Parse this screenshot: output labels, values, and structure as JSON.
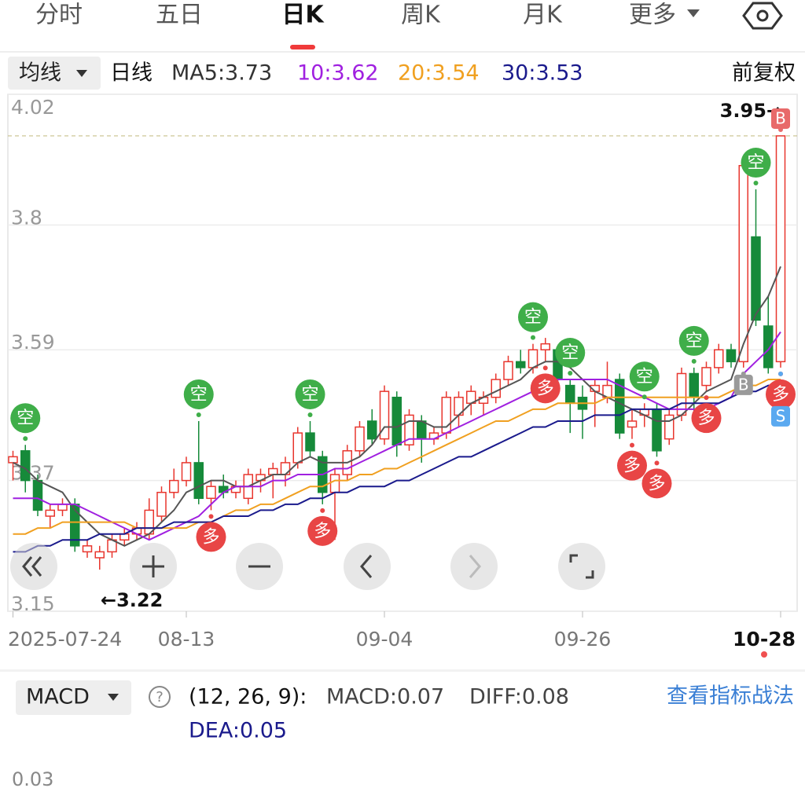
{
  "tabs": [
    "分时",
    "五日",
    "日K",
    "周K",
    "月K",
    "更多"
  ],
  "selected_tab": 2,
  "legend": {
    "menu": "均线",
    "period": "日线",
    "items": [
      {
        "label": "MA5:3.73",
        "color": "#333333"
      },
      {
        "label": "10:3.62",
        "color": "#a020e0"
      },
      {
        "label": "20:3.54",
        "color": "#f0a020"
      },
      {
        "label": "30:3.53",
        "color": "#1a1a8c"
      }
    ],
    "adjust": "前复权"
  },
  "chart_data": {
    "type": "candlestick",
    "categories": [
      "2025-07-24",
      null,
      null,
      null,
      null,
      null,
      null,
      null,
      null,
      null,
      null,
      null,
      null,
      null,
      "08-13",
      null,
      null,
      null,
      null,
      null,
      null,
      null,
      null,
      null,
      null,
      null,
      null,
      null,
      null,
      null,
      "09-04",
      null,
      null,
      null,
      null,
      null,
      null,
      null,
      null,
      null,
      null,
      null,
      null,
      null,
      null,
      null,
      "09-26",
      null,
      null,
      null,
      null,
      null,
      null,
      null,
      null,
      null,
      null,
      null,
      null,
      null,
      null,
      null,
      "10-28"
    ],
    "open": [
      3.4,
      3.42,
      3.37,
      3.31,
      3.32,
      3.33,
      3.25,
      3.24,
      3.25,
      3.27,
      3.28,
      3.28,
      3.31,
      3.35,
      3.37,
      3.4,
      3.34,
      3.36,
      3.35,
      3.34,
      3.37,
      3.38,
      3.38,
      3.4,
      3.45,
      3.41,
      3.35,
      3.38,
      3.42,
      3.47,
      3.44,
      3.51,
      3.43,
      3.47,
      3.44,
      3.45,
      3.48,
      3.5,
      3.5,
      3.51,
      3.54,
      3.57,
      3.56,
      3.59,
      3.59,
      3.53,
      3.51,
      3.52,
      3.51,
      3.54,
      3.46,
      3.48,
      3.49,
      3.44,
      3.48,
      3.55,
      3.53,
      3.56,
      3.59,
      3.57,
      3.78,
      3.63,
      3.57
    ],
    "high": [
      3.42,
      3.43,
      3.38,
      3.33,
      3.34,
      3.34,
      3.27,
      3.26,
      3.28,
      3.29,
      3.3,
      3.34,
      3.36,
      3.39,
      3.41,
      3.47,
      3.37,
      3.38,
      3.37,
      3.39,
      3.39,
      3.4,
      3.41,
      3.46,
      3.47,
      3.42,
      3.39,
      3.43,
      3.47,
      3.49,
      3.53,
      3.52,
      3.49,
      3.48,
      3.46,
      3.52,
      3.52,
      3.53,
      3.52,
      3.55,
      3.58,
      3.59,
      3.6,
      3.61,
      3.59,
      3.54,
      3.53,
      3.54,
      3.57,
      3.55,
      3.49,
      3.5,
      3.5,
      3.49,
      3.56,
      3.56,
      3.57,
      3.6,
      3.6,
      3.9,
      3.86,
      3.68,
      3.95
    ],
    "low": [
      3.37,
      3.35,
      3.31,
      3.29,
      3.31,
      3.25,
      3.24,
      3.22,
      3.24,
      3.26,
      3.27,
      3.27,
      3.3,
      3.34,
      3.36,
      3.33,
      3.32,
      3.34,
      3.34,
      3.33,
      3.35,
      3.34,
      3.36,
      3.39,
      3.41,
      3.33,
      3.27,
      3.37,
      3.41,
      3.43,
      3.43,
      3.41,
      3.42,
      3.4,
      3.43,
      3.44,
      3.46,
      3.48,
      3.48,
      3.5,
      3.53,
      3.55,
      3.55,
      3.57,
      3.52,
      3.45,
      3.44,
      3.46,
      3.5,
      3.44,
      3.44,
      3.46,
      3.41,
      3.43,
      3.47,
      3.48,
      3.52,
      3.55,
      3.56,
      3.56,
      3.63,
      3.55,
      3.56
    ],
    "close": [
      3.41,
      3.37,
      3.32,
      3.32,
      3.33,
      3.26,
      3.26,
      3.25,
      3.27,
      3.28,
      3.29,
      3.32,
      3.35,
      3.37,
      3.4,
      3.34,
      3.36,
      3.35,
      3.36,
      3.38,
      3.38,
      3.39,
      3.4,
      3.45,
      3.42,
      3.35,
      3.38,
      3.42,
      3.46,
      3.44,
      3.52,
      3.43,
      3.48,
      3.44,
      3.45,
      3.51,
      3.51,
      3.52,
      3.51,
      3.54,
      3.57,
      3.56,
      3.59,
      3.6,
      3.54,
      3.5,
      3.49,
      3.53,
      3.53,
      3.45,
      3.47,
      3.49,
      3.42,
      3.48,
      3.55,
      3.51,
      3.56,
      3.59,
      3.57,
      3.9,
      3.64,
      3.56,
      3.95
    ],
    "up_color": "#e8362e",
    "down_color": "#168a3a",
    "series": [
      {
        "color": "#555555",
        "values": [
          3.4,
          3.39,
          3.37,
          3.36,
          3.35,
          3.32,
          3.3,
          3.28,
          3.27,
          3.26,
          3.27,
          3.28,
          3.3,
          3.32,
          3.35,
          3.36,
          3.37,
          3.37,
          3.36,
          3.36,
          3.37,
          3.38,
          3.38,
          3.4,
          3.41,
          3.4,
          3.4,
          3.4,
          3.41,
          3.43,
          3.46,
          3.46,
          3.47,
          3.47,
          3.46,
          3.46,
          3.48,
          3.5,
          3.51,
          3.52,
          3.53,
          3.54,
          3.56,
          3.57,
          3.57,
          3.56,
          3.54,
          3.52,
          3.51,
          3.5,
          3.49,
          3.48,
          3.47,
          3.47,
          3.48,
          3.5,
          3.52,
          3.53,
          3.54,
          3.6,
          3.65,
          3.68,
          3.73
        ]
      },
      {
        "color": "#a020e0",
        "values": [
          3.34,
          3.34,
          3.34,
          3.33,
          3.33,
          3.33,
          3.32,
          3.31,
          3.3,
          3.29,
          3.28,
          3.27,
          3.28,
          3.29,
          3.3,
          3.31,
          3.33,
          3.35,
          3.36,
          3.36,
          3.36,
          3.37,
          3.37,
          3.38,
          3.38,
          3.38,
          3.39,
          3.39,
          3.4,
          3.41,
          3.42,
          3.43,
          3.44,
          3.44,
          3.44,
          3.45,
          3.46,
          3.47,
          3.48,
          3.49,
          3.5,
          3.51,
          3.52,
          3.53,
          3.54,
          3.54,
          3.54,
          3.54,
          3.54,
          3.53,
          3.52,
          3.51,
          3.5,
          3.49,
          3.49,
          3.49,
          3.49,
          3.5,
          3.51,
          3.55,
          3.57,
          3.59,
          3.62
        ]
      },
      {
        "color": "#f0a020",
        "values": [
          3.28,
          3.28,
          3.29,
          3.29,
          3.3,
          3.3,
          3.3,
          3.3,
          3.3,
          3.3,
          3.29,
          3.29,
          3.29,
          3.29,
          3.29,
          3.3,
          3.3,
          3.31,
          3.32,
          3.32,
          3.33,
          3.33,
          3.34,
          3.35,
          3.36,
          3.36,
          3.37,
          3.37,
          3.38,
          3.38,
          3.39,
          3.39,
          3.4,
          3.41,
          3.42,
          3.43,
          3.44,
          3.45,
          3.46,
          3.47,
          3.47,
          3.48,
          3.49,
          3.49,
          3.5,
          3.5,
          3.5,
          3.5,
          3.51,
          3.51,
          3.51,
          3.51,
          3.51,
          3.51,
          3.51,
          3.51,
          3.51,
          3.51,
          3.52,
          3.53,
          3.53,
          3.54,
          3.54
        ]
      },
      {
        "color": "#1a1a8c",
        "values": [
          3.25,
          3.25,
          3.26,
          3.26,
          3.27,
          3.27,
          3.27,
          3.28,
          3.28,
          3.28,
          3.29,
          3.29,
          3.29,
          3.3,
          3.3,
          3.3,
          3.3,
          3.31,
          3.31,
          3.31,
          3.32,
          3.32,
          3.33,
          3.33,
          3.34,
          3.34,
          3.35,
          3.35,
          3.36,
          3.36,
          3.36,
          3.37,
          3.37,
          3.38,
          3.39,
          3.4,
          3.41,
          3.41,
          3.42,
          3.43,
          3.44,
          3.45,
          3.46,
          3.46,
          3.47,
          3.47,
          3.47,
          3.48,
          3.48,
          3.48,
          3.49,
          3.49,
          3.49,
          3.49,
          3.5,
          3.5,
          3.5,
          3.5,
          3.51,
          3.52,
          3.52,
          3.53,
          3.53
        ]
      }
    ],
    "ylim": [
      3.15,
      4.02
    ],
    "yticks": [
      4.02,
      3.8,
      3.59,
      3.37,
      3.15
    ],
    "grid": true,
    "max": 3.95,
    "max_label": "3.95→",
    "min": 3.22,
    "min_label": "←3.22",
    "signals": [
      {
        "index": 1,
        "label": "空",
        "side": "above",
        "color": "#3fae49"
      },
      {
        "index": 15,
        "label": "空",
        "side": "above",
        "color": "#3fae49"
      },
      {
        "index": 24,
        "label": "空",
        "side": "above",
        "color": "#3fae49"
      },
      {
        "index": 42,
        "label": "空",
        "side": "above",
        "color": "#3fae49"
      },
      {
        "index": 45,
        "label": "空",
        "side": "above",
        "color": "#3fae49"
      },
      {
        "index": 51,
        "label": "空",
        "side": "above",
        "color": "#3fae49"
      },
      {
        "index": 55,
        "label": "空",
        "side": "above",
        "color": "#3fae49"
      },
      {
        "index": 60,
        "label": "空",
        "side": "above",
        "color": "#3fae49"
      },
      {
        "index": 16,
        "label": "多",
        "side": "below",
        "color": "#e84545"
      },
      {
        "index": 25,
        "label": "多",
        "side": "below",
        "color": "#e84545"
      },
      {
        "index": 43,
        "label": "多",
        "side": "below",
        "color": "#e84545"
      },
      {
        "index": 50,
        "label": "多",
        "side": "below",
        "color": "#e84545"
      },
      {
        "index": 52,
        "label": "多",
        "side": "below",
        "color": "#e84545"
      },
      {
        "index": 56,
        "label": "多",
        "side": "below",
        "color": "#e84545"
      },
      {
        "index": 62,
        "label": "多",
        "side": "below",
        "color": "#e84545"
      },
      {
        "index": 62,
        "label": "B",
        "side": "above",
        "color": "#e86a6a"
      },
      {
        "index": 59,
        "label": "B",
        "side": "below",
        "color": "#9a9a9a"
      },
      {
        "index": 62,
        "label": "S",
        "side": "below",
        "color": "#5aa9f0"
      }
    ]
  },
  "macd": {
    "menu": "MACD",
    "help": "?",
    "params": "(12, 26, 9):",
    "macd": "MACD:0.07",
    "diff": "DIFF:0.08",
    "dea": "DEA:0.05",
    "link": "查看指标战法",
    "axis_label": "0.03"
  }
}
